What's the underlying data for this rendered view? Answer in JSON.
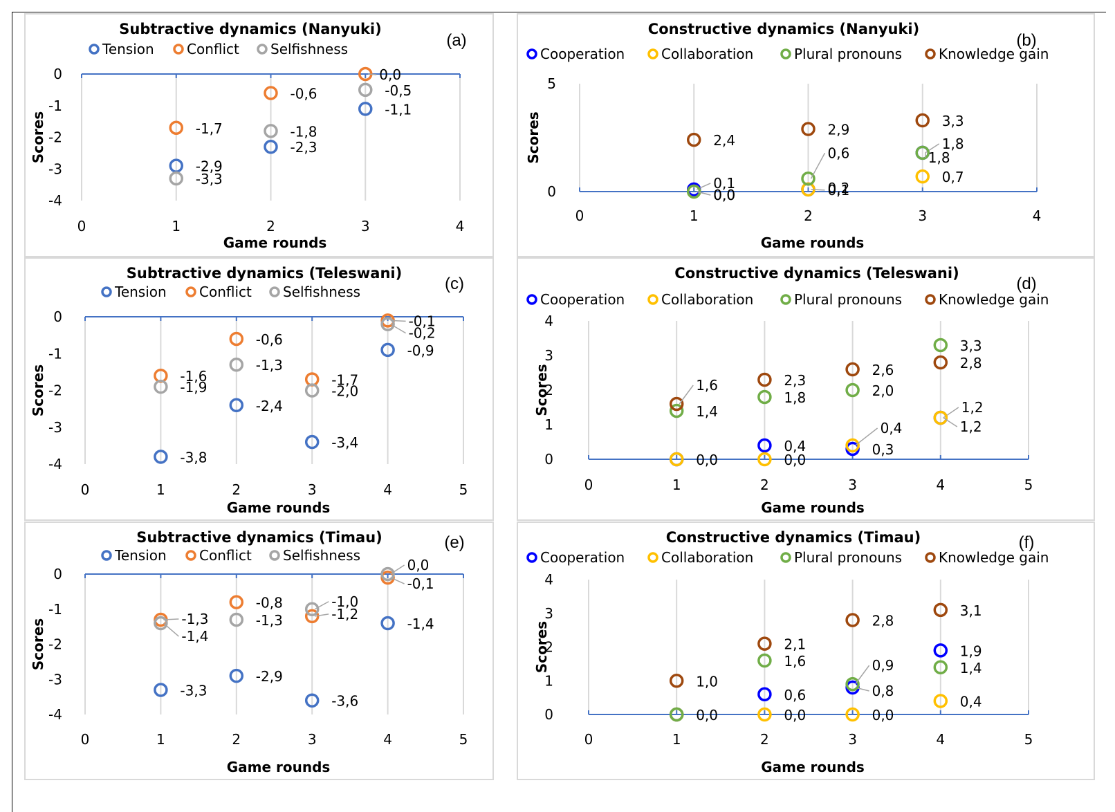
{
  "figure": {
    "panels_layout": "3 rows x 2 columns"
  },
  "chart_data": [
    {
      "id": "a",
      "type": "scatter",
      "title": "Subtractive dynamics (Nanyuki)",
      "tag": "(a)",
      "xlabel": "Game rounds",
      "ylabel": "Scores",
      "xlim": [
        0,
        4
      ],
      "ylim": [
        -4,
        0
      ],
      "xticks": [
        "0",
        "1",
        "2",
        "3",
        "4"
      ],
      "yticks": [
        "0",
        "-1",
        "-2",
        "-3",
        "-4"
      ],
      "ytick_values": [
        0,
        -1,
        -2,
        -3,
        -4
      ],
      "grid": "vertical",
      "legend_position": "top",
      "series": [
        {
          "name": "Tension",
          "color": "#4472c4",
          "x": [
            1,
            2,
            3
          ],
          "y": [
            -2.9,
            -2.3,
            -1.1
          ],
          "labels": [
            "-2,9",
            "-2,3",
            "-1,1"
          ]
        },
        {
          "name": "Conflict",
          "color": "#ed7d31",
          "x": [
            1,
            2,
            3
          ],
          "y": [
            -1.7,
            -0.6,
            0.0
          ],
          "labels": [
            "-1,7",
            "-0,6",
            "0,0"
          ]
        },
        {
          "name": "Selfishness",
          "color": "#a5a5a5",
          "x": [
            1,
            2,
            3
          ],
          "y": [
            -3.3,
            -1.8,
            -0.5
          ],
          "labels": [
            "-3,3",
            "-1,8",
            "-0,5"
          ]
        }
      ]
    },
    {
      "id": "b",
      "type": "scatter",
      "title": "Constructive dynamics (Nanyuki)",
      "tag": "(b)",
      "xlabel": "Game rounds",
      "ylabel": "Scores",
      "xlim": [
        0,
        4
      ],
      "ylim": [
        0,
        5
      ],
      "xticks": [
        "0",
        "1",
        "2",
        "3",
        "4"
      ],
      "yticks": [
        "5",
        "0"
      ],
      "ytick_values": [
        5,
        0
      ],
      "grid": "vertical",
      "legend_position": "top",
      "series": [
        {
          "name": "Cooperation",
          "color": "#0000ff",
          "x": [
            1,
            2,
            3
          ],
          "y": [
            0.1,
            0.1,
            1.8
          ],
          "labels": [
            "0,1",
            "",
            "1,8"
          ]
        },
        {
          "name": "Collaboration",
          "color": "#ffc000",
          "x": [
            1,
            2,
            3
          ],
          "y": [
            0.0,
            0.1,
            0.7
          ],
          "labels": [
            "0,0",
            "0,1",
            "0,7"
          ]
        },
        {
          "name": "Plural pronouns",
          "color": "#70ad47",
          "x": [
            1,
            2,
            3
          ],
          "y": [
            0.0,
            0.6,
            1.8
          ],
          "labels": [
            "0,0",
            "0,6",
            "1,8"
          ]
        },
        {
          "name": "Knowledge gain",
          "color": "#9e480e",
          "x": [
            1,
            2,
            3
          ],
          "y": [
            2.4,
            2.9,
            3.3
          ],
          "labels": [
            "2,4",
            "2,9",
            "3,3"
          ]
        }
      ],
      "extra_labels": [
        "0,2"
      ]
    },
    {
      "id": "c",
      "type": "scatter",
      "title": "Subtractive dynamics (Teleswani)",
      "tag": "(c)",
      "xlabel": "Game rounds",
      "ylabel": "Scores",
      "xlim": [
        0,
        5
      ],
      "ylim": [
        -4,
        0
      ],
      "xticks": [
        "0",
        "1",
        "2",
        "3",
        "4",
        "5"
      ],
      "yticks": [
        "0",
        "-1",
        "-2",
        "-3",
        "-4"
      ],
      "ytick_values": [
        0,
        -1,
        -2,
        -3,
        -4
      ],
      "grid": "vertical",
      "legend_position": "top",
      "series": [
        {
          "name": "Tension",
          "color": "#4472c4",
          "x": [
            1,
            2,
            3,
            4
          ],
          "y": [
            -3.8,
            -2.4,
            -3.4,
            -0.9
          ],
          "labels": [
            "-3,8",
            "-2,4",
            "-3,4",
            "-0,9"
          ]
        },
        {
          "name": "Conflict",
          "color": "#ed7d31",
          "x": [
            1,
            2,
            3,
            4
          ],
          "y": [
            -1.6,
            -0.6,
            -1.7,
            -0.1
          ],
          "labels": [
            "-1,6",
            "-0,6",
            "-1,7",
            "-0,1"
          ]
        },
        {
          "name": "Selfishness",
          "color": "#a5a5a5",
          "x": [
            1,
            2,
            3,
            4
          ],
          "y": [
            -1.9,
            -1.3,
            -2.0,
            -0.2
          ],
          "labels": [
            "-1,9",
            "-1,3",
            "-2,0",
            "-0,2"
          ]
        }
      ]
    },
    {
      "id": "d",
      "type": "scatter",
      "title": "Constructive dynamics (Teleswani)",
      "tag": "(d)",
      "xlabel": "Game rounds",
      "ylabel": "Scores",
      "xlim": [
        0,
        5
      ],
      "ylim": [
        0,
        4
      ],
      "xticks": [
        "0",
        "1",
        "2",
        "3",
        "4",
        "5"
      ],
      "yticks": [
        "4",
        "3",
        "2",
        "1",
        "0"
      ],
      "ytick_values": [
        4,
        3,
        2,
        1,
        0
      ],
      "grid": "vertical",
      "legend_position": "top",
      "series": [
        {
          "name": "Cooperation",
          "color": "#0000ff",
          "x": [
            1,
            2,
            3,
            4
          ],
          "y": [
            0.0,
            0.4,
            0.3,
            1.2
          ],
          "labels": [
            "",
            "0,4",
            "0,3",
            "1,2"
          ]
        },
        {
          "name": "Collaboration",
          "color": "#ffc000",
          "x": [
            1,
            2,
            3,
            4
          ],
          "y": [
            0.0,
            0.0,
            0.4,
            1.2
          ],
          "labels": [
            "0,0",
            "0,0",
            "0,4",
            "1,2"
          ]
        },
        {
          "name": "Plural pronouns",
          "color": "#70ad47",
          "x": [
            1,
            2,
            3,
            4
          ],
          "y": [
            1.4,
            1.8,
            2.0,
            3.3
          ],
          "labels": [
            "1,4",
            "1,8",
            "2,0",
            "3,3"
          ]
        },
        {
          "name": "Knowledge gain",
          "color": "#9e480e",
          "x": [
            1,
            2,
            3,
            4
          ],
          "y": [
            1.6,
            2.3,
            2.6,
            2.8
          ],
          "labels": [
            "1,6",
            "2,3",
            "2,6",
            "2,8"
          ]
        }
      ]
    },
    {
      "id": "e",
      "type": "scatter",
      "title": "Subtractive dynamics (Timau)",
      "tag": "(e)",
      "xlabel": "Game rounds",
      "ylabel": "Scores",
      "xlim": [
        0,
        5
      ],
      "ylim": [
        -4,
        0
      ],
      "xticks": [
        "0",
        "1",
        "2",
        "3",
        "4",
        "5"
      ],
      "yticks": [
        "0",
        "-1",
        "-2",
        "-3",
        "-4"
      ],
      "ytick_values": [
        0,
        -1,
        -2,
        -3,
        -4
      ],
      "grid": "vertical",
      "legend_position": "top",
      "series": [
        {
          "name": "Tension",
          "color": "#4472c4",
          "x": [
            1,
            2,
            3,
            4
          ],
          "y": [
            -3.3,
            -2.9,
            -3.6,
            -1.4
          ],
          "labels": [
            "-3,3",
            "-2,9",
            "-3,6",
            "-1,4"
          ]
        },
        {
          "name": "Conflict",
          "color": "#ed7d31",
          "x": [
            1,
            2,
            3,
            4
          ],
          "y": [
            -1.3,
            -0.8,
            -1.2,
            -0.1
          ],
          "labels": [
            "-1,3",
            "-0,8",
            "-1,2",
            "-0,1"
          ]
        },
        {
          "name": "Selfishness",
          "color": "#a5a5a5",
          "x": [
            1,
            2,
            3,
            4
          ],
          "y": [
            -1.4,
            -1.3,
            -1.0,
            0.0
          ],
          "labels": [
            "-1,4",
            "-1,3",
            "-1,0",
            "0,0"
          ]
        }
      ]
    },
    {
      "id": "f",
      "type": "scatter",
      "title": "Constructive dynamics (Timau)",
      "tag": "(f)",
      "xlabel": "Game rounds",
      "ylabel": "Scores",
      "xlim": [
        0,
        5
      ],
      "ylim": [
        0,
        4
      ],
      "xticks": [
        "0",
        "1",
        "2",
        "3",
        "4",
        "5"
      ],
      "yticks": [
        "4",
        "3",
        "2",
        "1",
        "0"
      ],
      "ytick_values": [
        4,
        3,
        2,
        1,
        0
      ],
      "grid": "vertical",
      "legend_position": "top",
      "series": [
        {
          "name": "Cooperation",
          "color": "#0000ff",
          "x": [
            1,
            2,
            3,
            4
          ],
          "y": [
            0.0,
            0.6,
            0.8,
            1.9
          ],
          "labels": [
            "",
            "0,6",
            "0,8",
            "1,9"
          ]
        },
        {
          "name": "Collaboration",
          "color": "#ffc000",
          "x": [
            1,
            2,
            3,
            4
          ],
          "y": [
            0.0,
            0.0,
            0.0,
            0.4
          ],
          "labels": [
            "",
            "0,0",
            "0,0",
            "0,4"
          ]
        },
        {
          "name": "Plural pronouns",
          "color": "#70ad47",
          "x": [
            1,
            2,
            3,
            4
          ],
          "y": [
            0.0,
            1.6,
            0.9,
            1.4
          ],
          "labels": [
            "0,0",
            "1,6",
            "0,9",
            "1,4"
          ]
        },
        {
          "name": "Knowledge gain",
          "color": "#9e480e",
          "x": [
            1,
            2,
            3,
            4
          ],
          "y": [
            1.0,
            2.1,
            2.8,
            3.1
          ],
          "labels": [
            "1,0",
            "2,1",
            "2,8",
            "3,1"
          ]
        }
      ]
    }
  ]
}
